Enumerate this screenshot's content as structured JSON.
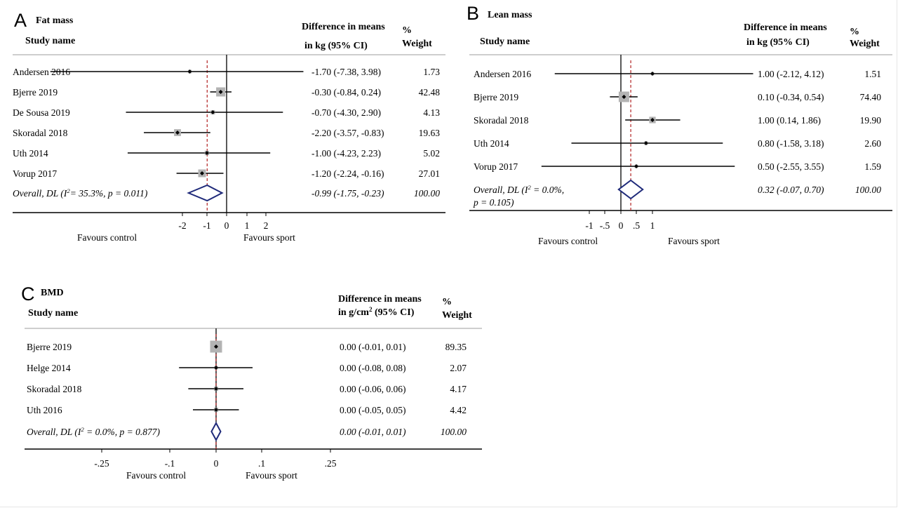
{
  "chart_data": [
    {
      "type": "forest",
      "panel_letter": "A",
      "title": "Fat mass",
      "headers": {
        "study": "Study name",
        "effect_line1": "Difference in means",
        "effect_line2": "in kg (95% CI)",
        "weight_line1": "%",
        "weight_line2": "Weight"
      },
      "studies": [
        {
          "name": "Andersen 2016",
          "estimate": -1.7,
          "ci": [
            -7.38,
            3.98
          ],
          "ci_text": "-1.70 (-7.38, 3.98)",
          "weight": 1.73,
          "weight_text": "1.73"
        },
        {
          "name": "Bjerre 2019",
          "estimate": -0.3,
          "ci": [
            -0.84,
            0.24
          ],
          "ci_text": "-0.30 (-0.84, 0.24)",
          "weight": 42.48,
          "weight_text": "42.48"
        },
        {
          "name": "De Sousa 2019",
          "estimate": -0.7,
          "ci": [
            -4.3,
            2.9
          ],
          "ci_text": "-0.70 (-4.30, 2.90)",
          "weight": 4.13,
          "weight_text": "4.13"
        },
        {
          "name": "Skoradal 2018",
          "estimate": -2.2,
          "ci": [
            -3.57,
            -0.83
          ],
          "ci_text": "-2.20 (-3.57, -0.83)",
          "weight": 19.63,
          "weight_text": "19.63"
        },
        {
          "name": "Uth 2014",
          "estimate": -1.0,
          "ci": [
            -4.23,
            2.23
          ],
          "ci_text": "-1.00 (-4.23, 2.23)",
          "weight": 5.02,
          "weight_text": "5.02"
        },
        {
          "name": "Vorup 2017",
          "estimate": -1.2,
          "ci": [
            -2.24,
            -0.16
          ],
          "ci_text": "-1.20 (-2.24, -0.16)",
          "weight": 27.01,
          "weight_text": "27.01"
        }
      ],
      "overall": {
        "label": "Overall, DL (I2= 35.3%, p = 0.011)",
        "label_parts": [
          "Overall, DL (I",
          "2",
          "= 35.3%, p = 0.011)"
        ],
        "estimate": -0.99,
        "ci": [
          -1.75,
          -0.23
        ],
        "ci_text": "-0.99 (-1.75, -0.23)",
        "weight_text": "100.00"
      },
      "ticks": [
        -2,
        -1,
        0,
        1,
        2
      ],
      "tick_labels": [
        "-2",
        "-1",
        "0",
        "1",
        "2"
      ],
      "favours_left": "Favours control",
      "favours_right": "Favours sport"
    },
    {
      "type": "forest",
      "panel_letter": "B",
      "title": "Lean mass",
      "headers": {
        "study": "Study name",
        "effect_line1": "Difference in means",
        "effect_line2": "in kg (95% CI)",
        "weight_line1": "%",
        "weight_line2": "Weight"
      },
      "studies": [
        {
          "name": "Andersen 2016",
          "estimate": 1.0,
          "ci": [
            -2.12,
            4.12
          ],
          "ci_text": "1.00 (-2.12, 4.12)",
          "weight": 1.51,
          "weight_text": "1.51"
        },
        {
          "name": "Bjerre 2019",
          "estimate": 0.1,
          "ci": [
            -0.34,
            0.54
          ],
          "ci_text": "0.10 (-0.34, 0.54)",
          "weight": 74.4,
          "weight_text": "74.40"
        },
        {
          "name": "Skoradal 2018",
          "estimate": 1.0,
          "ci": [
            0.14,
            1.86
          ],
          "ci_text": "1.00 (0.14, 1.86)",
          "weight": 19.9,
          "weight_text": "19.90"
        },
        {
          "name": "Uth 2014",
          "estimate": 0.8,
          "ci": [
            -1.58,
            3.18
          ],
          "ci_text": "0.80 (-1.58, 3.18)",
          "weight": 2.6,
          "weight_text": "2.60"
        },
        {
          "name": "Vorup 2017",
          "estimate": 0.5,
          "ci": [
            -2.55,
            3.55
          ],
          "ci_text": "0.50 (-2.55, 3.55)",
          "weight": 1.59,
          "weight_text": "1.59"
        }
      ],
      "overall": {
        "label": "Overall, DL (I2 = 0.0%, p = 0.105)",
        "label_parts": [
          "Overall, DL (I",
          "2",
          " = 0.0%,"
        ],
        "label_line2": "p = 0.105)",
        "estimate": 0.32,
        "ci": [
          -0.07,
          0.7
        ],
        "ci_text": "0.32 (-0.07, 0.70)",
        "weight_text": "100.00"
      },
      "ticks": [
        -1,
        -0.5,
        0,
        0.5,
        1
      ],
      "tick_labels": [
        "-1",
        "-.5",
        "0",
        ".5",
        "1"
      ],
      "favours_left": "Favours control",
      "favours_right": "Favours sport"
    },
    {
      "type": "forest",
      "panel_letter": "C",
      "title": "BMD",
      "headers": {
        "study": "Study name",
        "effect_line1": "Difference in means",
        "effect_line2_parts": [
          "in g/cm",
          "2",
          " (95% CI)"
        ],
        "weight_line1": "%",
        "weight_line2": "Weight"
      },
      "studies": [
        {
          "name": "Bjerre 2019",
          "estimate": 0.0,
          "ci": [
            -0.01,
            0.01
          ],
          "ci_text": "0.00 (-0.01, 0.01)",
          "weight": 89.35,
          "weight_text": "89.35"
        },
        {
          "name": "Helge 2014",
          "estimate": 0.0,
          "ci": [
            -0.08,
            0.08
          ],
          "ci_text": "0.00 (-0.08, 0.08)",
          "weight": 2.07,
          "weight_text": "2.07"
        },
        {
          "name": "Skoradal 2018",
          "estimate": 0.0,
          "ci": [
            -0.06,
            0.06
          ],
          "ci_text": "0.00 (-0.06, 0.06)",
          "weight": 4.17,
          "weight_text": "4.17"
        },
        {
          "name": "Uth 2016",
          "estimate": 0.0,
          "ci": [
            -0.05,
            0.05
          ],
          "ci_text": "0.00 (-0.05, 0.05)",
          "weight": 4.42,
          "weight_text": "4.42"
        }
      ],
      "overall": {
        "label": "Overall, DL (I2 = 0.0%, p = 0.877)",
        "label_parts": [
          "Overall, DL (I",
          "2",
          " = 0.0%, p = 0.877)"
        ],
        "estimate": 0.0,
        "ci": [
          -0.01,
          0.01
        ],
        "ci_text": "0.00 (-0.01, 0.01)",
        "weight_text": "100.00"
      },
      "ticks": [
        -0.25,
        -0.1,
        0,
        0.1,
        0.25
      ],
      "tick_labels": [
        "-.25",
        "-.1",
        "0",
        ".1",
        ".25"
      ],
      "favours_left": "Favours control",
      "favours_right": "Favours sport"
    }
  ],
  "colors": {
    "reference_dashed": "#b22222",
    "diamond": "#1f2a7a",
    "weight_box": "#b3b3b3",
    "rule": "#bdbdbd"
  }
}
